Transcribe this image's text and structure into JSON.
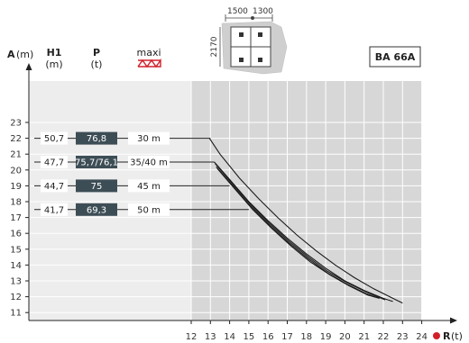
{
  "header": {
    "a_label": "A",
    "a_unit": "(m)",
    "h1_label": "H1",
    "h1_unit": "(m)",
    "p_label": "P",
    "p_unit": "(t)",
    "maxi_label": "maxi",
    "model": "BA 66A",
    "dims": {
      "d1": "1500",
      "d2": "1300",
      "d3": "2170"
    }
  },
  "chart_data": {
    "type": "line",
    "x_axis": {
      "label": "R",
      "unit": "(t)",
      "ticks": [
        12,
        13,
        14,
        15,
        16,
        17,
        18,
        19,
        20,
        21,
        22,
        23,
        24
      ],
      "range": [
        12,
        24
      ]
    },
    "y_axis": {
      "label": "A",
      "unit": "(m)",
      "ticks": [
        11,
        12,
        13,
        14,
        15,
        16,
        17,
        18,
        19,
        20,
        21,
        22,
        23
      ],
      "range": [
        11,
        23
      ]
    },
    "grid": true,
    "rows": [
      {
        "A": 22,
        "H1": "50,7",
        "P": "76,8",
        "maxi": "30 m",
        "start_x": 13.0
      },
      {
        "A": 20.5,
        "H1": "47,7",
        "P": "75,7/76,1",
        "maxi": "35/40 m",
        "start_x": 13.2
      },
      {
        "A": 19,
        "H1": "44,7",
        "P": "75",
        "maxi": "45 m",
        "start_x": 14.0
      },
      {
        "A": 17.5,
        "H1": "41,7",
        "P": "69,3",
        "maxi": "50 m",
        "start_x": 15.0
      }
    ],
    "series": [
      {
        "x": [
          12.95,
          13.5,
          14.5,
          15.5,
          16.5,
          17.5,
          18.5,
          19.5,
          20.5,
          21.5,
          22.5,
          23.0
        ],
        "y": [
          22.0,
          21.0,
          19.5,
          18.2,
          17.0,
          15.9,
          14.9,
          14.0,
          13.2,
          12.5,
          11.9,
          11.6
        ]
      },
      {
        "x": [
          13.2,
          14.0,
          15.0,
          16.0,
          17.0,
          18.0,
          19.0,
          20.0,
          21.0,
          22.0,
          22.5
        ],
        "y": [
          20.5,
          19.4,
          18.0,
          16.8,
          15.7,
          14.7,
          13.8,
          13.0,
          12.4,
          11.9,
          11.7
        ]
      },
      {
        "x": [
          13.25,
          14.1,
          15.1,
          16.1,
          17.1,
          18.1,
          19.1,
          20.1,
          21.1,
          22.1
        ],
        "y": [
          20.4,
          19.2,
          17.8,
          16.6,
          15.5,
          14.5,
          13.6,
          12.9,
          12.3,
          11.8
        ]
      },
      {
        "x": [
          13.3,
          14.1,
          15.1,
          16.1,
          17.1,
          18.1,
          19.1,
          20.1,
          21.1,
          21.8
        ],
        "y": [
          20.2,
          19.1,
          17.7,
          16.5,
          15.4,
          14.4,
          13.5,
          12.8,
          12.2,
          11.9
        ]
      },
      {
        "x": [
          13.35,
          14.2,
          15.2,
          16.2,
          17.2,
          18.2,
          19.2,
          20.2,
          21.2,
          21.8
        ],
        "y": [
          20.1,
          18.9,
          17.5,
          16.3,
          15.2,
          14.2,
          13.4,
          12.7,
          12.1,
          11.9
        ]
      }
    ]
  }
}
